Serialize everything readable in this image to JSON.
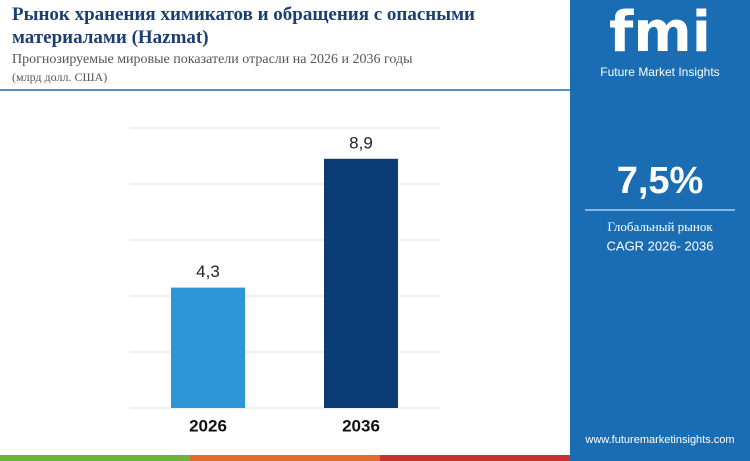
{
  "chart_data": {
    "type": "bar",
    "title": "Рынок хранения химикатов и обращения с опасными материалами (Hazmat)",
    "subtitle": "Прогнозируемые мировые показатели отрасли на 2026 и 2036 годы",
    "unit_note": "(млрд долл. США)",
    "categories": [
      "2026",
      "2036"
    ],
    "values": [
      4.3,
      8.9
    ],
    "value_labels": [
      "4,3",
      "8,9"
    ],
    "colors": [
      "#2e96d6",
      "#0b3b74"
    ],
    "ylim": [
      0,
      10
    ],
    "yticks": [
      0,
      2,
      4,
      6,
      8,
      10
    ],
    "grid": true
  },
  "side_panel": {
    "logo": "fmi",
    "logo_caption": "Future Market Insights",
    "cagr": "7,5%",
    "cagr_caption_1": "Глобальный рынок",
    "cagr_caption_2": "CAGR 2026- 2036",
    "website": "www.futuremarketinsights.com"
  }
}
